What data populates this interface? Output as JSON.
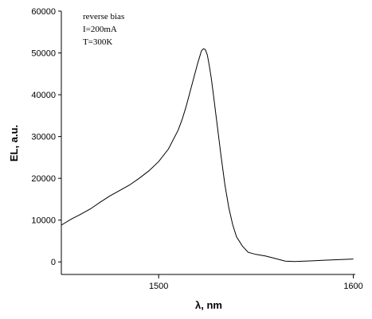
{
  "chart_data": {
    "type": "line",
    "xlabel": "λ, nm",
    "ylabel": "EL, a.u.",
    "xlim": [
      1450,
      1601
    ],
    "ylim": [
      -3000,
      60000
    ],
    "x_ticks": [
      1500,
      1600
    ],
    "y_ticks": [
      0,
      10000,
      20000,
      30000,
      40000,
      50000,
      60000
    ],
    "x_tick_labels": [
      "1500",
      "1600"
    ],
    "y_tick_labels": [
      "0",
      "10000",
      "20000",
      "30000",
      "40000",
      "50000",
      "60000"
    ],
    "grid": false,
    "annotations": [
      "reverse bias",
      "I=200mA",
      "T=300K"
    ],
    "series": [
      {
        "x": [
          1450,
          1455,
          1460,
          1465,
          1470,
          1475,
          1480,
          1485,
          1490,
          1495,
          1500,
          1505,
          1510,
          1512,
          1514,
          1516,
          1518,
          1520,
          1521,
          1522,
          1523,
          1524,
          1525,
          1526,
          1527,
          1528,
          1530,
          1532,
          1534,
          1536,
          1538,
          1540,
          1543,
          1546,
          1550,
          1555,
          1560,
          1565,
          1570,
          1575,
          1580,
          1585,
          1590,
          1595,
          1600
        ],
        "y": [
          8800,
          10200,
          11400,
          12700,
          14300,
          15800,
          17100,
          18400,
          20000,
          21800,
          24000,
          27000,
          31500,
          34000,
          37000,
          40500,
          44000,
          47500,
          49000,
          50500,
          51000,
          50800,
          49500,
          47000,
          44000,
          40500,
          33000,
          25500,
          18500,
          13000,
          9000,
          6000,
          3800,
          2300,
          1800,
          1400,
          800,
          200,
          100,
          200,
          300,
          400,
          500,
          600,
          700
        ]
      }
    ]
  }
}
